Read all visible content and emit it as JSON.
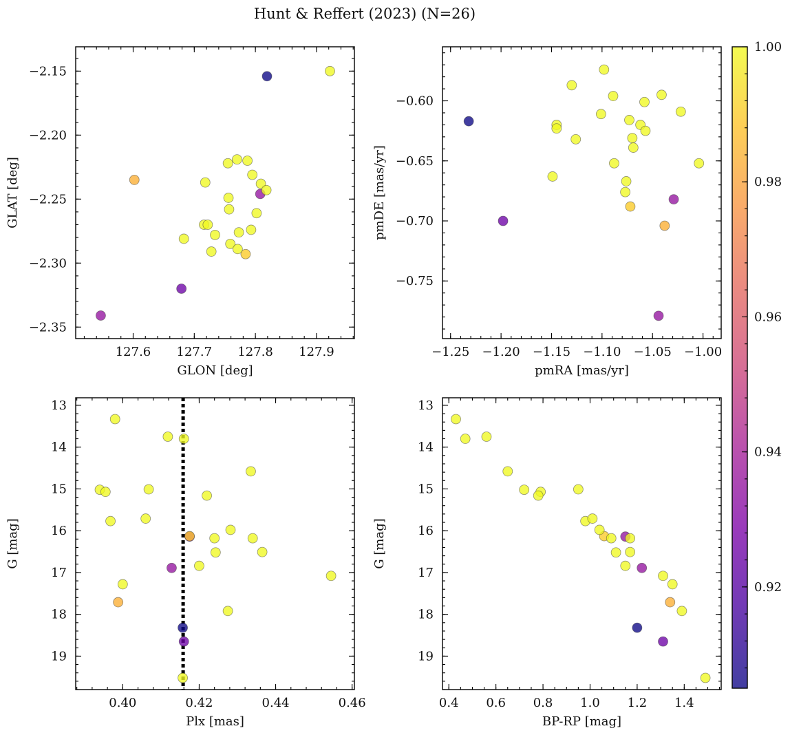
{
  "title": "Hunt & Reffert (2023) (N=26)",
  "colorbar": {
    "range": [
      0.905,
      1.0
    ],
    "ticks": [
      "0.92",
      "0.94",
      "0.96",
      "0.98",
      "1.00"
    ],
    "tick_values": [
      0.92,
      0.94,
      0.96,
      0.98,
      1.0
    ]
  },
  "stars": [
    {
      "glon": 127.922,
      "glat": -2.15,
      "pmra": -1.062,
      "pmde": -0.62,
      "plx": 0.4335,
      "g": 14.58,
      "bprp": 0.65,
      "p": 1.0
    },
    {
      "glon": 127.819,
      "glat": -2.154,
      "pmra": -1.232,
      "pmde": -0.617,
      "plx": 0.4157,
      "g": 18.32,
      "bprp": 1.2,
      "p": 0.905
    },
    {
      "glon": 127.602,
      "glat": -2.235,
      "pmra": -1.038,
      "pmde": -0.704,
      "plx": 0.3988,
      "g": 17.71,
      "bprp": 1.34,
      "p": 0.983
    },
    {
      "glon": 127.547,
      "glat": -2.341,
      "pmra": -1.029,
      "pmde": -0.682,
      "plx": 0.4128,
      "g": 16.89,
      "bprp": 1.22,
      "p": 0.935
    },
    {
      "glon": 127.679,
      "glat": -2.32,
      "pmra": -1.198,
      "pmde": -0.7,
      "plx": 0.416,
      "g": 18.65,
      "bprp": 1.31,
      "p": 0.925
    },
    {
      "glon": 127.808,
      "glat": -2.246,
      "pmra": -1.044,
      "pmde": -0.779,
      "plx": 0.4175,
      "g": 16.14,
      "bprp": 1.15,
      "p": 0.935
    },
    {
      "glon": 127.755,
      "glat": -2.222,
      "pmra": -1.098,
      "pmde": -0.574,
      "plx": 0.398,
      "g": 13.33,
      "bprp": 0.43,
      "p": 1.0
    },
    {
      "glon": 127.77,
      "glat": -2.219,
      "pmra": -1.13,
      "pmde": -0.587,
      "plx": 0.416,
      "g": 13.8,
      "bprp": 0.47,
      "p": 1.0
    },
    {
      "glon": 127.787,
      "glat": -2.22,
      "pmra": -1.089,
      "pmde": -0.596,
      "plx": 0.4118,
      "g": 13.75,
      "bprp": 0.56,
      "p": 1.0
    },
    {
      "glon": 127.718,
      "glat": -2.237,
      "pmra": -1.058,
      "pmde": -0.601,
      "plx": 0.394,
      "g": 15.02,
      "bprp": 0.72,
      "p": 1.0
    },
    {
      "glon": 127.795,
      "glat": -2.231,
      "pmra": -1.041,
      "pmde": -0.595,
      "plx": 0.3955,
      "g": 15.07,
      "bprp": 0.79,
      "p": 1.0
    },
    {
      "glon": 127.809,
      "glat": -2.238,
      "pmra": -1.022,
      "pmde": -0.609,
      "plx": 0.4068,
      "g": 15.01,
      "bprp": 0.95,
      "p": 1.0
    },
    {
      "glon": 127.818,
      "glat": -2.243,
      "pmra": -1.101,
      "pmde": -0.611,
      "plx": 0.422,
      "g": 15.16,
      "bprp": 0.78,
      "p": 1.0
    },
    {
      "glon": 127.756,
      "glat": -2.249,
      "pmra": -1.145,
      "pmde": -0.62,
      "plx": 0.3968,
      "g": 15.77,
      "bprp": 0.98,
      "p": 1.0
    },
    {
      "glon": 127.757,
      "glat": -2.258,
      "pmra": -1.145,
      "pmde": -0.623,
      "plx": 0.406,
      "g": 15.71,
      "bprp": 1.01,
      "p": 1.0
    },
    {
      "glon": 127.802,
      "glat": -2.261,
      "pmra": -1.073,
      "pmde": -0.616,
      "plx": 0.4282,
      "g": 15.98,
      "bprp": 1.04,
      "p": 1.0
    },
    {
      "glon": 127.716,
      "glat": -2.27,
      "pmra": -1.126,
      "pmde": -0.632,
      "plx": 0.424,
      "g": 16.18,
      "bprp": 1.09,
      "p": 1.0
    },
    {
      "glon": 127.722,
      "glat": -2.27,
      "pmra": -1.07,
      "pmde": -0.631,
      "plx": 0.434,
      "g": 16.18,
      "bprp": 1.17,
      "p": 1.0
    },
    {
      "glon": 127.773,
      "glat": -2.276,
      "pmra": -1.057,
      "pmde": -0.625,
      "plx": 0.4243,
      "g": 16.52,
      "bprp": 1.11,
      "p": 1.0
    },
    {
      "glon": 127.793,
      "glat": -2.274,
      "pmra": -1.069,
      "pmde": -0.639,
      "plx": 0.4365,
      "g": 16.51,
      "bprp": 1.17,
      "p": 1.0
    },
    {
      "glon": 127.734,
      "glat": -2.278,
      "pmra": -1.088,
      "pmde": -0.652,
      "plx": 0.42,
      "g": 16.84,
      "bprp": 1.15,
      "p": 1.0
    },
    {
      "glon": 127.683,
      "glat": -2.281,
      "pmra": -1.149,
      "pmde": -0.663,
      "plx": 0.4545,
      "g": 17.08,
      "bprp": 1.31,
      "p": 1.0
    },
    {
      "glon": 127.759,
      "glat": -2.285,
      "pmra": -1.076,
      "pmde": -0.667,
      "plx": 0.4,
      "g": 17.28,
      "bprp": 1.35,
      "p": 1.0
    },
    {
      "glon": 127.728,
      "glat": -2.291,
      "pmra": -1.077,
      "pmde": -0.676,
      "plx": 0.4275,
      "g": 17.92,
      "bprp": 1.39,
      "p": 1.0
    },
    {
      "glon": 127.771,
      "glat": -2.289,
      "pmra": -1.004,
      "pmde": -0.652,
      "plx": 0.4157,
      "g": 19.52,
      "bprp": 1.49,
      "p": 1.0
    },
    {
      "glon": 127.784,
      "glat": -2.293,
      "pmra": -1.072,
      "pmde": -0.688,
      "plx": 0.4175,
      "g": 16.13,
      "bprp": 1.06,
      "p": 0.99
    }
  ],
  "chart_data": [
    {
      "type": "scatter",
      "id": "pos",
      "x_field": "glon",
      "y_field": "glat",
      "xlabel": "GLON [deg]",
      "ylabel": "GLAT [deg]",
      "xlim": [
        127.506,
        127.962
      ],
      "ylim": [
        -2.359,
        -2.131
      ],
      "x_ticks": [
        127.6,
        127.7,
        127.8,
        127.9
      ],
      "x_tick_labels": [
        "127.6",
        "127.7",
        "127.8",
        "127.9"
      ],
      "y_ticks": [
        -2.35,
        -2.3,
        -2.25,
        -2.2,
        -2.15
      ],
      "y_tick_labels": [
        "−2.35",
        "−2.30",
        "−2.25",
        "−2.20",
        "−2.15"
      ],
      "x_minor": 0.02,
      "y_minor": 0.01,
      "y_inverted": false
    },
    {
      "type": "scatter",
      "id": "pm",
      "x_field": "pmra",
      "y_field": "pmde",
      "xlabel": "pmRA [mas/yr]",
      "ylabel": "pmDE [mas/yr]",
      "xlim": [
        -1.258,
        -0.982
      ],
      "ylim": [
        -0.798,
        -0.555
      ],
      "x_ticks": [
        -1.25,
        -1.2,
        -1.15,
        -1.1,
        -1.05,
        -1.0
      ],
      "x_tick_labels": [
        "−1.25",
        "−1.20",
        "−1.15",
        "−1.10",
        "−1.05",
        "−1.00"
      ],
      "y_ticks": [
        -0.75,
        -0.7,
        -0.65,
        -0.6
      ],
      "y_tick_labels": [
        "−0.75",
        "−0.70",
        "−0.65",
        "−0.60"
      ],
      "x_minor": 0.01,
      "y_minor": 0.01,
      "y_inverted": false
    },
    {
      "type": "scatter",
      "id": "plx",
      "x_field": "plx",
      "y_field": "g",
      "xlabel": "Plx [mas]",
      "ylabel": "G [mag]",
      "xlim": [
        0.3877,
        0.4606
      ],
      "ylim": [
        12.82,
        19.8
      ],
      "x_ticks": [
        0.4,
        0.42,
        0.44,
        0.46
      ],
      "x_tick_labels": [
        "0.40",
        "0.42",
        "0.44",
        "0.46"
      ],
      "y_ticks": [
        13,
        14,
        15,
        16,
        17,
        18,
        19
      ],
      "y_tick_labels": [
        "13",
        "14",
        "15",
        "16",
        "17",
        "18",
        "19"
      ],
      "x_minor": 0.004,
      "y_minor": 0.2,
      "y_inverted": true,
      "vline": {
        "x": 0.4158,
        "style": "dotted"
      }
    },
    {
      "type": "scatter",
      "id": "cmd",
      "x_field": "bprp",
      "y_field": "g",
      "xlabel": "BP-RP [mag]",
      "ylabel": "G [mag]",
      "xlim": [
        0.373,
        1.557
      ],
      "ylim": [
        12.82,
        19.8
      ],
      "x_ticks": [
        0.4,
        0.6,
        0.8,
        1.0,
        1.2,
        1.4
      ],
      "x_tick_labels": [
        "0.4",
        "0.6",
        "0.8",
        "1.0",
        "1.2",
        "1.4"
      ],
      "y_ticks": [
        13,
        14,
        15,
        16,
        17,
        18,
        19
      ],
      "y_tick_labels": [
        "13",
        "14",
        "15",
        "16",
        "17",
        "18",
        "19"
      ],
      "x_minor": 0.05,
      "y_minor": 0.2,
      "y_inverted": true
    }
  ]
}
